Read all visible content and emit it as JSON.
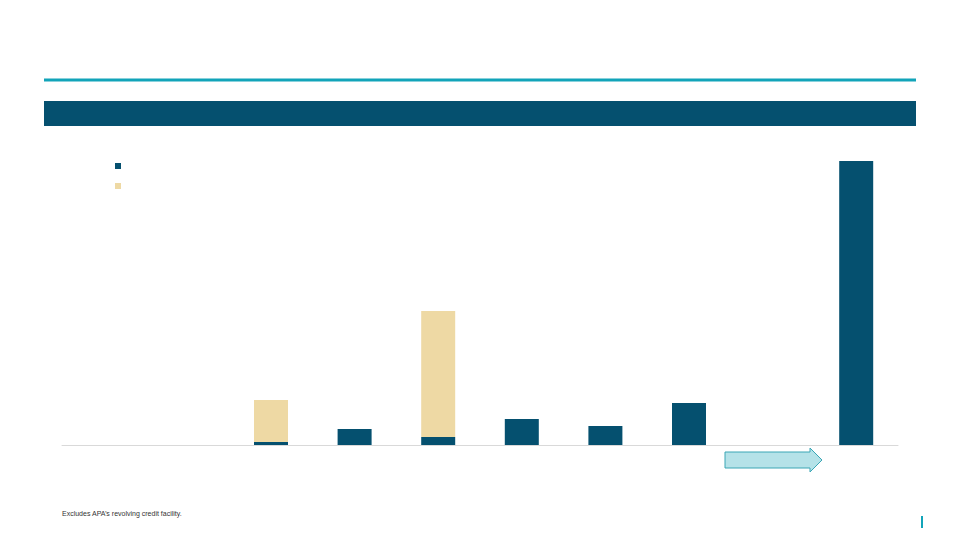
{
  "chart_data": {
    "type": "bar",
    "stacked": true,
    "categories": [
      null,
      null,
      null,
      null,
      null,
      null,
      null,
      null,
      null,
      null
    ],
    "series": [
      {
        "color": "#05506f",
        "values": [
          0,
          0,
          3,
          16,
          8,
          26,
          19,
          42,
          0,
          284
        ]
      },
      {
        "color": "#eed9a4",
        "values": [
          0,
          0,
          42,
          0,
          126,
          0,
          0,
          0,
          0,
          0
        ]
      }
    ],
    "ylim": [
      0,
      284
    ],
    "grid": false,
    "tick_labels": false,
    "footnote": "Excludes APA’s revolving credit facility."
  }
}
